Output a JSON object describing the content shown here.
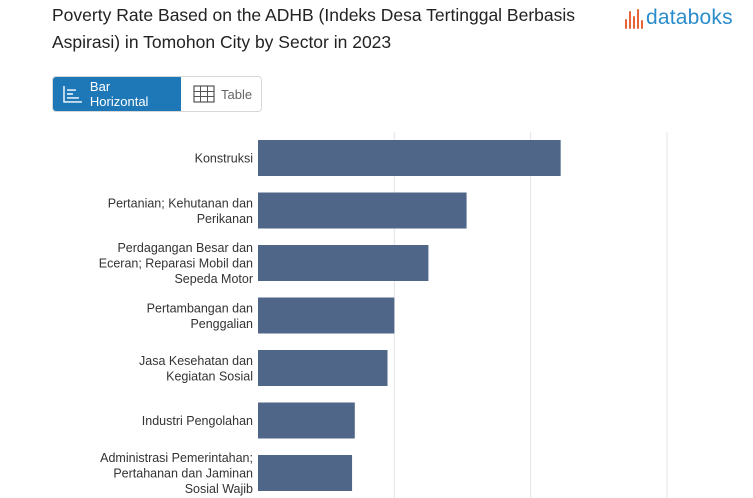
{
  "header": {
    "title": "Poverty Rate Based on the ADHB (Indeks Desa Tertinggal Berbasis Aspirasi) in Tomohon City by Sector in 2023",
    "logo_text": "databoks",
    "logo_color": "#2b8ccc",
    "logo_accent": "#e8623a"
  },
  "toggle": {
    "bar_label": "Bar Horizontal",
    "table_label": "Table",
    "active_color": "#1e78b8"
  },
  "chart_data": {
    "type": "bar",
    "orientation": "horizontal",
    "categories": [
      "Konstruksi",
      "Pertanian; Kehutanan dan Perikanan",
      "Perdagangan Besar dan Eceran; Reparasi Mobil dan Sepeda Motor",
      "Pertambangan dan Penggalian",
      "Jasa Kesehatan dan Kegiatan Sosial",
      "Industri Pengolahan",
      "Administrasi Pemerintahan; Pertahanan dan Jaminan Sosial Wajib"
    ],
    "category_lines": [
      [
        "Konstruksi"
      ],
      [
        "Pertanian; Kehutanan dan",
        "Perikanan"
      ],
      [
        "Perdagangan Besar dan",
        "Eceran; Reparasi Mobil dan",
        "Sepeda Motor"
      ],
      [
        "Pertambangan dan",
        "Penggalian"
      ],
      [
        "Jasa Kesehatan dan",
        "Kegiatan Sosial"
      ],
      [
        "Industri Pengolahan"
      ],
      [
        "Administrasi Pemerintahan;",
        "Pertahanan dan Jaminan",
        "Sosial Wajib"
      ]
    ],
    "values": [
      22.2,
      15.3,
      12.5,
      10.0,
      9.5,
      7.1,
      6.9
    ],
    "xlim": [
      0,
      30
    ],
    "grid": true,
    "bar_color": "#4f6689"
  }
}
